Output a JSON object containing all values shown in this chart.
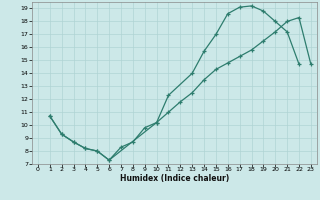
{
  "title": "",
  "xlabel": "Humidex (Indice chaleur)",
  "bg_color": "#cce8e8",
  "line_color": "#2e7d6e",
  "grid_color": "#b0d4d4",
  "xlim": [
    -0.5,
    23.5
  ],
  "ylim": [
    7,
    19.5
  ],
  "xticks": [
    0,
    1,
    2,
    3,
    4,
    5,
    6,
    7,
    8,
    9,
    10,
    11,
    12,
    13,
    14,
    15,
    16,
    17,
    18,
    19,
    20,
    21,
    22,
    23
  ],
  "yticks": [
    7,
    8,
    9,
    10,
    11,
    12,
    13,
    14,
    15,
    16,
    17,
    18,
    19
  ],
  "line1_x": [
    1,
    2,
    3,
    4,
    5,
    6,
    7,
    8,
    9,
    10,
    11,
    13,
    14,
    15,
    16,
    17,
    18,
    19,
    20,
    21,
    22
  ],
  "line1_y": [
    10.7,
    9.3,
    8.7,
    8.2,
    8.0,
    7.3,
    8.3,
    8.7,
    9.8,
    10.2,
    12.3,
    14.0,
    15.7,
    17.0,
    18.6,
    19.1,
    19.2,
    18.8,
    18.0,
    17.2,
    14.7
  ],
  "line2_x": [
    1,
    2,
    3,
    4,
    5,
    6,
    10,
    11,
    12,
    13,
    14,
    15,
    16,
    17,
    18,
    19,
    20,
    21,
    22,
    23
  ],
  "line2_y": [
    10.7,
    9.3,
    8.7,
    8.2,
    8.0,
    7.3,
    10.2,
    11.0,
    11.8,
    12.5,
    13.5,
    14.3,
    14.8,
    15.3,
    15.8,
    16.5,
    17.2,
    18.0,
    18.3,
    14.7
  ]
}
